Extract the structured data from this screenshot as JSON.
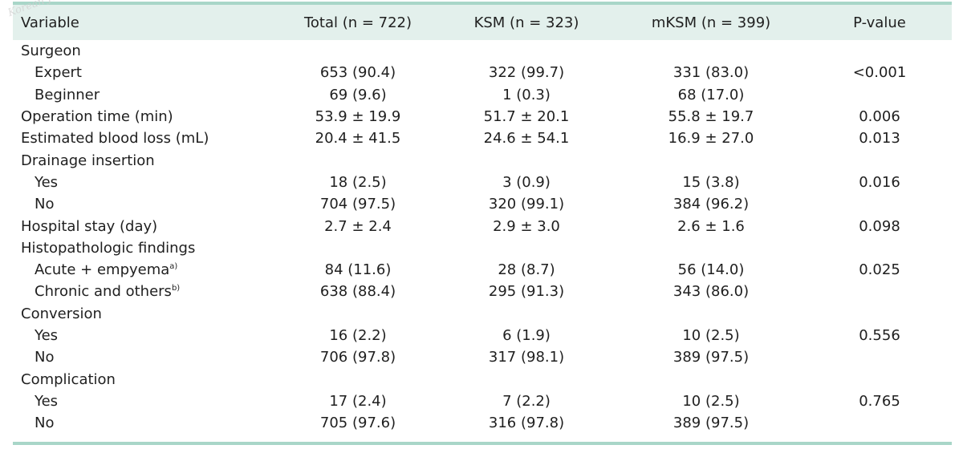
{
  "watermark": "Korean Journal",
  "table": {
    "headers": [
      "Variable",
      "Total (n = 722)",
      "KSM (n = 323)",
      "mKSM (n = 399)",
      "P-value"
    ],
    "rows": [
      {
        "label": "Surgeon",
        "sup": "",
        "indent": false,
        "total": "",
        "ksm": "",
        "mksm": "",
        "p": ""
      },
      {
        "label": "Expert",
        "sup": "",
        "indent": true,
        "total": "653 (90.4)",
        "ksm": "322 (99.7)",
        "mksm": "331 (83.0)",
        "p": "<0.001"
      },
      {
        "label": "Beginner",
        "sup": "",
        "indent": true,
        "total": "69 (9.6)",
        "ksm": "1 (0.3)",
        "mksm": "68 (17.0)",
        "p": ""
      },
      {
        "label": "Operation time (min)",
        "sup": "",
        "indent": false,
        "total": "53.9 ± 19.9",
        "ksm": "51.7 ± 20.1",
        "mksm": "55.8 ± 19.7",
        "p": "0.006"
      },
      {
        "label": "Estimated blood loss (mL)",
        "sup": "",
        "indent": false,
        "total": "20.4 ± 41.5",
        "ksm": "24.6 ± 54.1",
        "mksm": "16.9 ± 27.0",
        "p": "0.013"
      },
      {
        "label": "Drainage insertion",
        "sup": "",
        "indent": false,
        "total": "",
        "ksm": "",
        "mksm": "",
        "p": ""
      },
      {
        "label": "Yes",
        "sup": "",
        "indent": true,
        "total": "18 (2.5)",
        "ksm": "3 (0.9)",
        "mksm": "15 (3.8)",
        "p": "0.016"
      },
      {
        "label": "No",
        "sup": "",
        "indent": true,
        "total": "704 (97.5)",
        "ksm": "320 (99.1)",
        "mksm": "384 (96.2)",
        "p": ""
      },
      {
        "label": "Hospital stay (day)",
        "sup": "",
        "indent": false,
        "total": "2.7 ± 2.4",
        "ksm": "2.9 ± 3.0",
        "mksm": "2.6 ± 1.6",
        "p": "0.098"
      },
      {
        "label": "Histopathologic findings",
        "sup": "",
        "indent": false,
        "total": "",
        "ksm": "",
        "mksm": "",
        "p": ""
      },
      {
        "label": "Acute + empyema",
        "sup": "a)",
        "indent": true,
        "total": "84 (11.6)",
        "ksm": "28 (8.7)",
        "mksm": "56 (14.0)",
        "p": "0.025"
      },
      {
        "label": "Chronic and others",
        "sup": "b)",
        "indent": true,
        "total": "638 (88.4)",
        "ksm": "295 (91.3)",
        "mksm": "343 (86.0)",
        "p": ""
      },
      {
        "label": "Conversion",
        "sup": "",
        "indent": false,
        "total": "",
        "ksm": "",
        "mksm": "",
        "p": ""
      },
      {
        "label": "Yes",
        "sup": "",
        "indent": true,
        "total": "16 (2.2)",
        "ksm": "6 (1.9)",
        "mksm": "10 (2.5)",
        "p": "0.556"
      },
      {
        "label": "No",
        "sup": "",
        "indent": true,
        "total": "706 (97.8)",
        "ksm": "317 (98.1)",
        "mksm": "389 (97.5)",
        "p": ""
      },
      {
        "label": "Complication",
        "sup": "",
        "indent": false,
        "total": "",
        "ksm": "",
        "mksm": "",
        "p": ""
      },
      {
        "label": "Yes",
        "sup": "",
        "indent": true,
        "total": "17 (2.4)",
        "ksm": "7 (2.2)",
        "mksm": "10 (2.5)",
        "p": "0.765"
      },
      {
        "label": "No",
        "sup": "",
        "indent": true,
        "total": "705 (97.6)",
        "ksm": "316 (97.8)",
        "mksm": "389 (97.5)",
        "p": ""
      }
    ]
  },
  "colors": {
    "header_band": "#e3f0ec",
    "rule": "#a8d6c8",
    "text": "#1f1f1f"
  }
}
